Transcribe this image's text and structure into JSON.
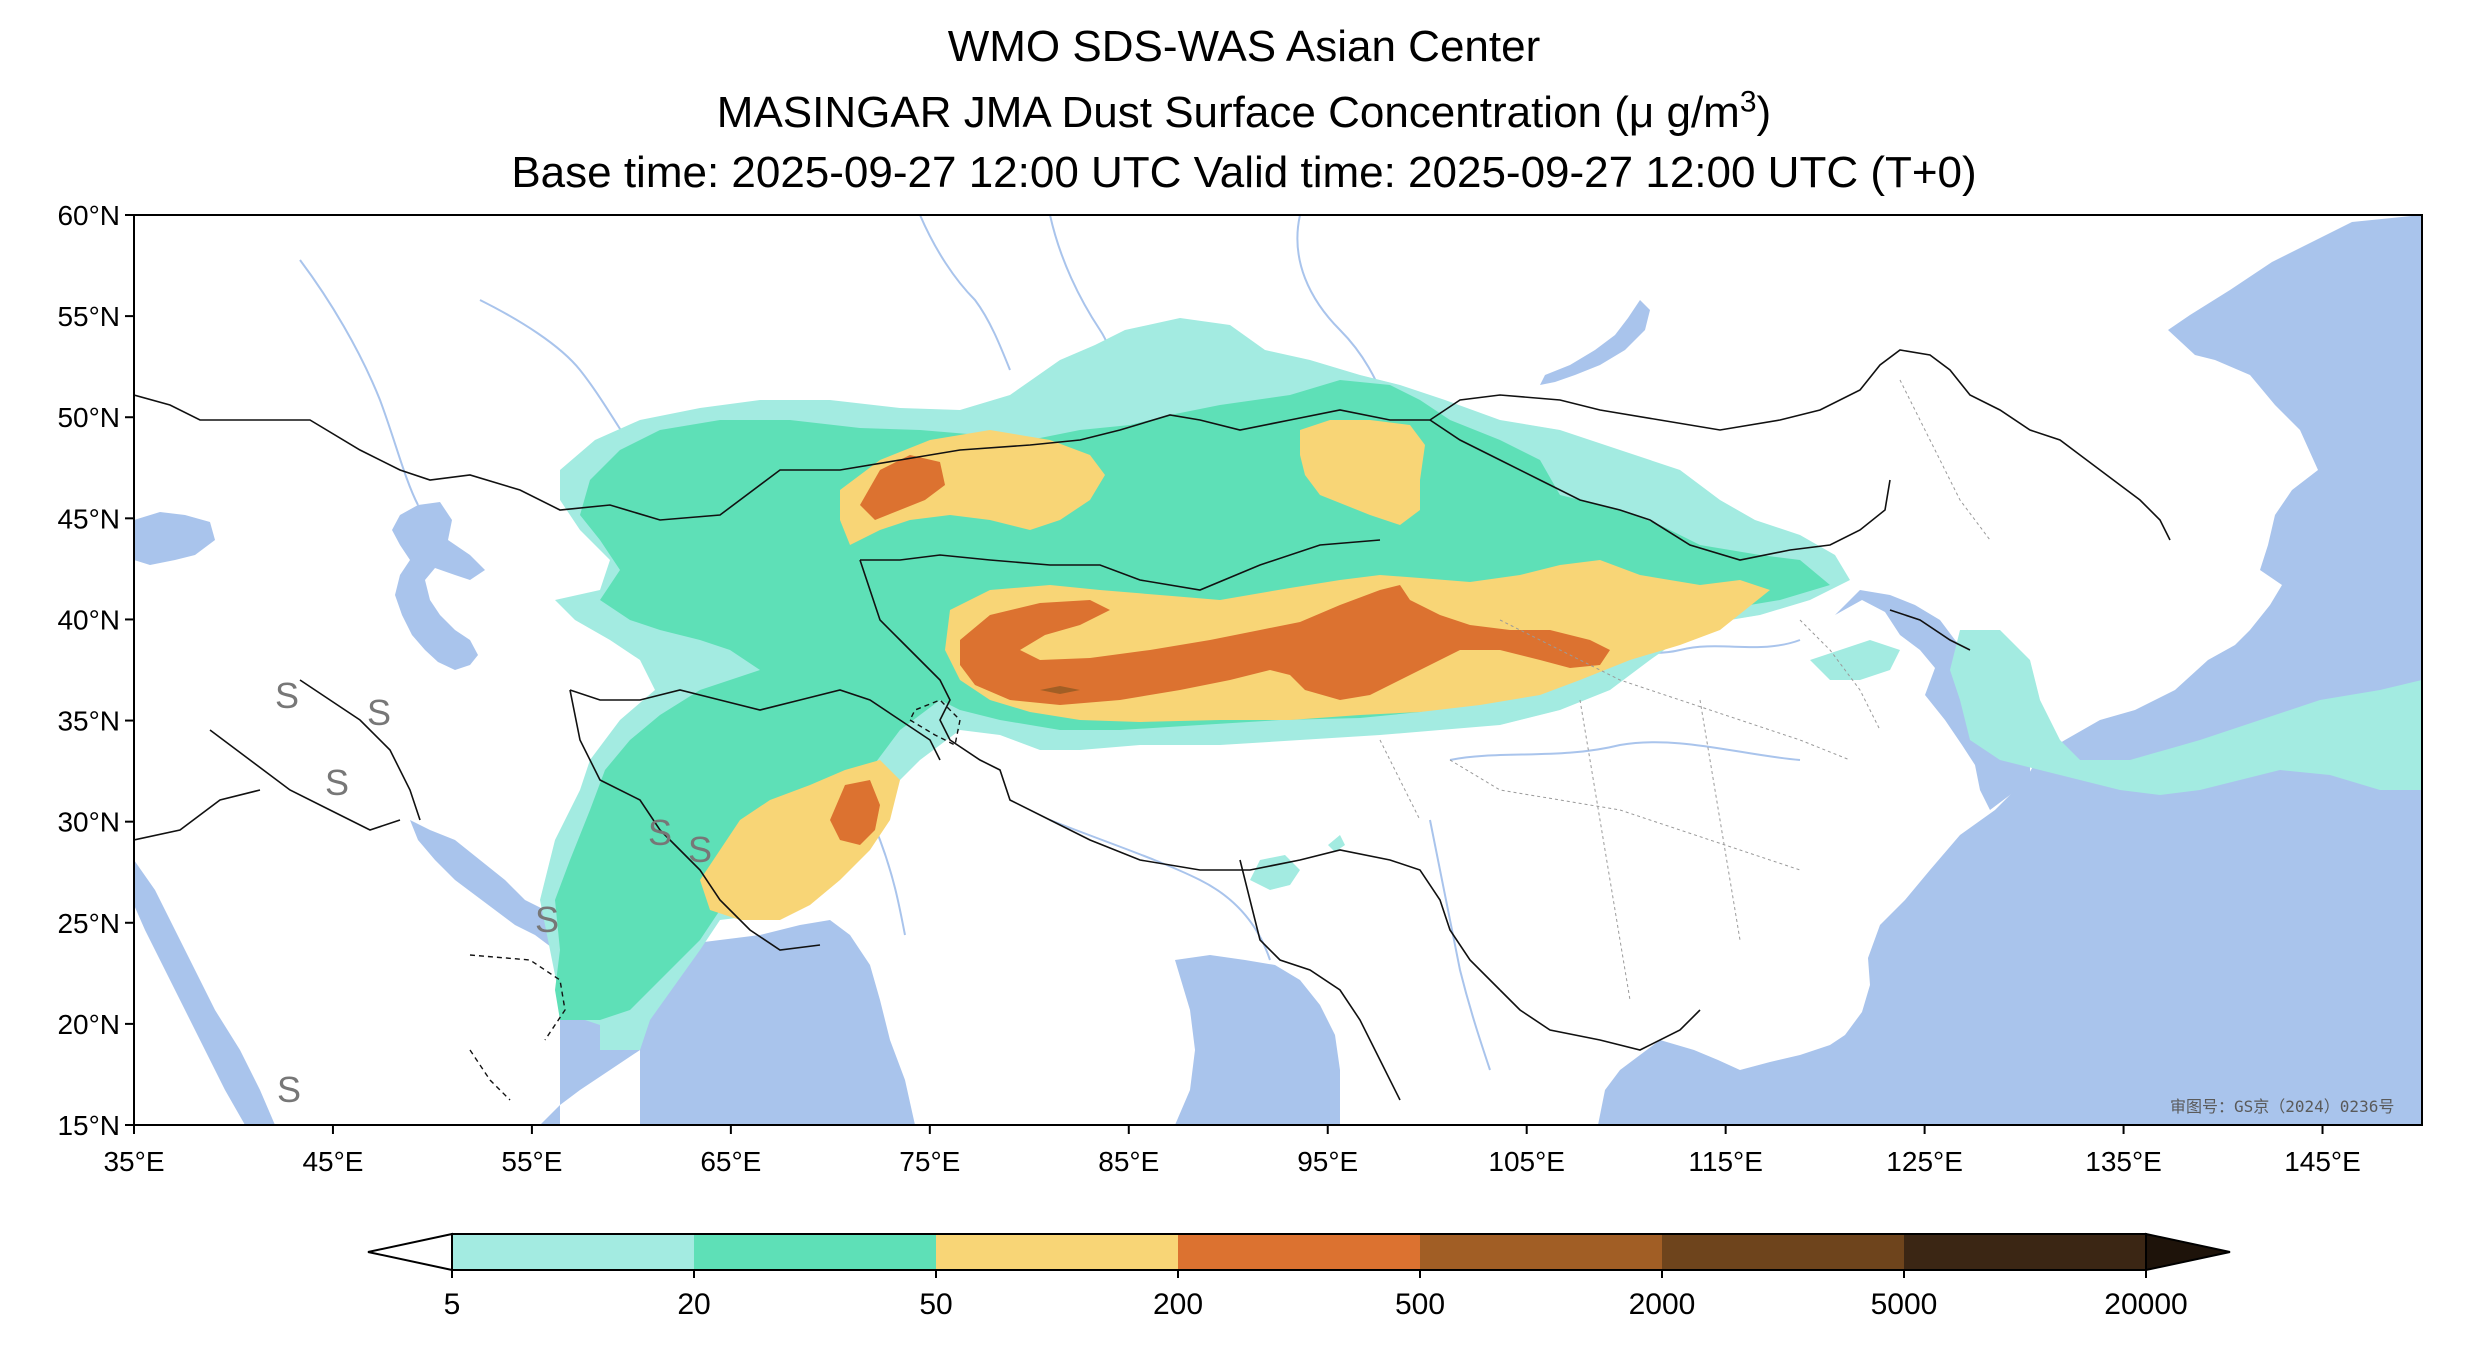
{
  "title": {
    "line1": "WMO SDS-WAS Asian Center",
    "line2_prefix": "MASINGAR JMA Dust Surface Concentration (",
    "line2_unit": "μ g/m",
    "line2_sup": "3",
    "line2_suffix": ")",
    "line3": "Base time: 2025-09-27 12:00 UTC Valid time: 2025-09-27 12:00 UTC (T+0)"
  },
  "map": {
    "projection": "PlateCarree",
    "lon_range": [
      35,
      150
    ],
    "lat_range": [
      15,
      60
    ],
    "ocean_color": "#a9c4ec",
    "land_color": "#ffffff",
    "river_color": "#a9c4ec",
    "credit_text": "审图号：GS京（2024）0236号",
    "lon_ticks": [
      "35°E",
      "45°E",
      "55°E",
      "65°E",
      "75°E",
      "85°E",
      "95°E",
      "105°E",
      "115°E",
      "125°E",
      "135°E",
      "145°E"
    ],
    "lat_ticks": [
      "60°N",
      "55°N",
      "50°N",
      "45°N",
      "40°N",
      "35°N",
      "30°N",
      "25°N",
      "20°N",
      "15°N"
    ]
  },
  "colorbar": {
    "levels": [
      "5",
      "20",
      "50",
      "200",
      "500",
      "2000",
      "5000",
      "20000"
    ],
    "colors": [
      "#a3ebe1",
      "#5ee0b7",
      "#f8d576",
      "#dc7230",
      "#a15e25",
      "#6e441c",
      "#3b2614"
    ],
    "extend": "both",
    "under_color": "#ffffff",
    "over_color": "#1e130a"
  }
}
